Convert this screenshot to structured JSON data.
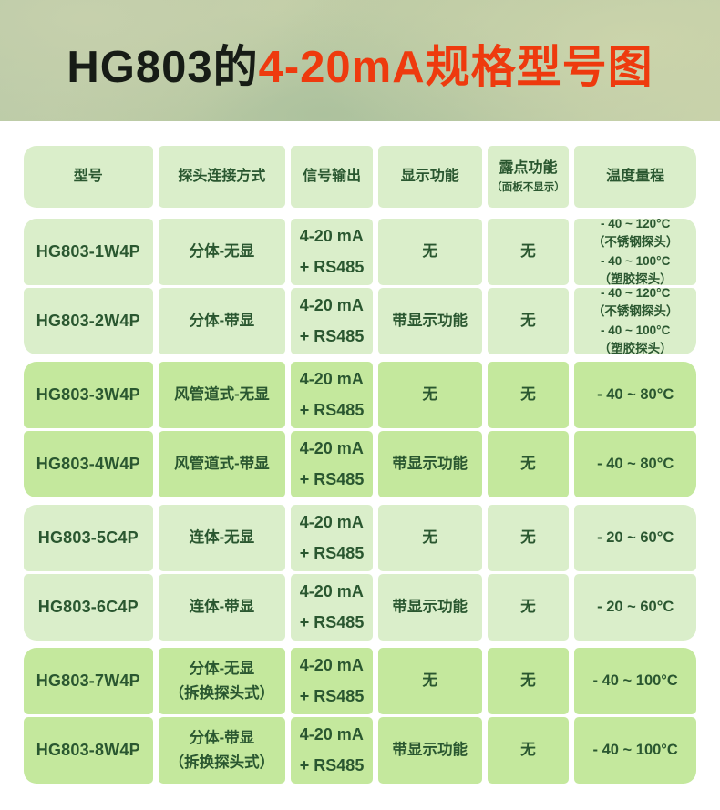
{
  "title": {
    "black": "HG803的",
    "orange": "4-20mA规格型号图"
  },
  "colors": {
    "title_orange": "#ee3a0e",
    "text_green": "#2a5730",
    "cell_light": "#daeeca",
    "cell_dark": "#c4e89d",
    "banner_green": "#bcc9a5"
  },
  "table": {
    "headers": [
      {
        "label": "型号"
      },
      {
        "label": "探头连接方式"
      },
      {
        "label": "信号输出"
      },
      {
        "label": "显示功能"
      },
      {
        "label": "露点功能",
        "sub": "（面板不显示）"
      },
      {
        "label": "温度量程"
      }
    ],
    "groups": [
      {
        "tone": "light",
        "rows": [
          {
            "model": "HG803-1W4P",
            "connection": "分体-无显",
            "signal": "4-20 mA\n+ RS485",
            "display": "无",
            "dew": "无",
            "temp": "- 40 ~ 120°C\n（不锈钢探头）\n- 40 ~ 100°C\n（塑胶探头）"
          },
          {
            "model": "HG803-2W4P",
            "connection": "分体-带显",
            "signal": "4-20 mA\n+ RS485",
            "display": "带显示功能",
            "dew": "无",
            "temp": "- 40 ~ 120°C\n（不锈钢探头）\n- 40 ~ 100°C\n（塑胶探头）"
          }
        ]
      },
      {
        "tone": "dark",
        "rows": [
          {
            "model": "HG803-3W4P",
            "connection": "风管道式-无显",
            "signal": "4-20 mA\n+ RS485",
            "display": "无",
            "dew": "无",
            "temp": "- 40 ~ 80°C"
          },
          {
            "model": "HG803-4W4P",
            "connection": "风管道式-带显",
            "signal": "4-20 mA\n+ RS485",
            "display": "带显示功能",
            "dew": "无",
            "temp": "- 40 ~ 80°C"
          }
        ]
      },
      {
        "tone": "light",
        "rows": [
          {
            "model": "HG803-5C4P",
            "connection": "连体-无显",
            "signal": "4-20 mA\n+ RS485",
            "display": "无",
            "dew": "无",
            "temp": "- 20 ~ 60°C"
          },
          {
            "model": "HG803-6C4P",
            "connection": "连体-带显",
            "signal": "4-20 mA\n+ RS485",
            "display": "带显示功能",
            "dew": "无",
            "temp": "- 20 ~ 60°C"
          }
        ]
      },
      {
        "tone": "dark",
        "rows": [
          {
            "model": "HG803-7W4P",
            "connection": "分体-无显\n（拆换探头式）",
            "signal": "4-20 mA\n+ RS485",
            "display": "无",
            "dew": "无",
            "temp": "- 40 ~ 100°C"
          },
          {
            "model": "HG803-8W4P",
            "connection": "分体-带显\n（拆换探头式）",
            "signal": "4-20 mA\n+ RS485",
            "display": "带显示功能",
            "dew": "无",
            "temp": "- 40 ~ 100°C"
          }
        ]
      }
    ]
  }
}
